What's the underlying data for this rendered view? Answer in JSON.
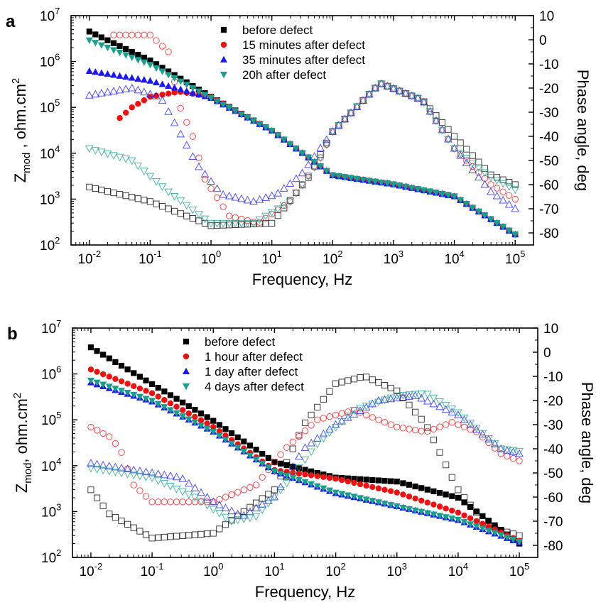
{
  "chart_data": [
    {
      "panel_label": "a",
      "type": "scatter",
      "xlabel": "Frequency, Hz",
      "ylabel_main": "Z",
      "ylabel_sub": "mod",
      "ylabel_rest": " , ohm.cm",
      "ylabel_sup": "2",
      "y2label": "Phase angle, deg",
      "xscale": "log",
      "xlim": [
        0.005,
        200000
      ],
      "yscale": "log",
      "ylim": [
        100,
        10000000
      ],
      "y2lim": [
        -85,
        10
      ],
      "x_ticks": [
        {
          "base": "10",
          "exp": "-2",
          "v": 0.01
        },
        {
          "base": "10",
          "exp": "-1",
          "v": 0.1
        },
        {
          "base": "10",
          "exp": "0",
          "v": 1
        },
        {
          "base": "10",
          "exp": "1",
          "v": 10
        },
        {
          "base": "10",
          "exp": "2",
          "v": 100
        },
        {
          "base": "10",
          "exp": "3",
          "v": 1000
        },
        {
          "base": "10",
          "exp": "4",
          "v": 10000
        },
        {
          "base": "10",
          "exp": "5",
          "v": 100000
        }
      ],
      "y_ticks": [
        {
          "base": "10",
          "exp": "2",
          "v": 100
        },
        {
          "base": "10",
          "exp": "3",
          "v": 1000
        },
        {
          "base": "10",
          "exp": "4",
          "v": 10000
        },
        {
          "base": "10",
          "exp": "5",
          "v": 100000
        },
        {
          "base": "10",
          "exp": "6",
          "v": 1000000
        },
        {
          "base": "10",
          "exp": "7",
          "v": 10000000
        }
      ],
      "y2_ticks": [
        "10",
        "0",
        "-10",
        "-20",
        "-30",
        "-40",
        "-50",
        "-60",
        "-70",
        "-80"
      ],
      "legend_position": "top-center",
      "series": [
        {
          "name": "before defect",
          "marker": "square",
          "color": "#000000",
          "mod": [
            [
              0.01,
              4500000
            ],
            [
              0.1,
              1050000
            ],
            [
              1,
              170000
            ],
            [
              10,
              31000
            ],
            [
              100,
              3300
            ],
            [
              1000,
              2100
            ],
            [
              10000,
              1150
            ],
            [
              100000,
              170
            ]
          ],
          "phase": [
            [
              0.01,
              -61
            ],
            [
              0.1,
              -67
            ],
            [
              1,
              -77
            ],
            [
              10,
              -76
            ],
            [
              40,
              -57
            ],
            [
              100,
              -38
            ],
            [
              600,
              -18
            ],
            [
              3000,
              -25
            ],
            [
              10000,
              -40
            ],
            [
              40000,
              -56
            ],
            [
              100000,
              -60
            ]
          ]
        },
        {
          "name": "15 minutes after defect",
          "marker": "circle",
          "color": "#ee1111",
          "mod": [
            [
              0.03,
              55000
            ],
            [
              0.05,
              100000
            ],
            [
              0.1,
              170000
            ],
            [
              0.3,
              220000
            ],
            [
              1,
              170000
            ],
            [
              10,
              31000
            ],
            [
              100,
              3300
            ],
            [
              1000,
              2100
            ],
            [
              10000,
              1150
            ],
            [
              100000,
              170
            ]
          ],
          "phase": [
            [
              0.025,
              2
            ],
            [
              0.1,
              2
            ],
            [
              0.2,
              -5
            ],
            [
              0.3,
              -27
            ],
            [
              0.5,
              -40
            ],
            [
              0.8,
              -58
            ],
            [
              2,
              -73
            ],
            [
              6,
              -76
            ],
            [
              20,
              -67
            ],
            [
              60,
              -50
            ],
            [
              100,
              -38
            ],
            [
              600,
              -18
            ],
            [
              3000,
              -25
            ],
            [
              10000,
              -45
            ],
            [
              40000,
              -60
            ],
            [
              100000,
              -66
            ]
          ]
        },
        {
          "name": "35 minutes after defect",
          "marker": "triangle-up",
          "color": "#1a1aee",
          "mod": [
            [
              0.01,
              620000
            ],
            [
              0.1,
              380000
            ],
            [
              1,
              160000
            ],
            [
              10,
              31000
            ],
            [
              100,
              3300
            ],
            [
              1000,
              2100
            ],
            [
              10000,
              1150
            ],
            [
              100000,
              170
            ]
          ],
          "phase": [
            [
              0.01,
              -23
            ],
            [
              0.05,
              -20
            ],
            [
              0.15,
              -24
            ],
            [
              0.3,
              -38
            ],
            [
              0.6,
              -52
            ],
            [
              1.5,
              -64
            ],
            [
              5,
              -67
            ],
            [
              12,
              -64
            ],
            [
              30,
              -56
            ],
            [
              100,
              -38
            ],
            [
              600,
              -18
            ],
            [
              3000,
              -25
            ],
            [
              10000,
              -45
            ],
            [
              40000,
              -63
            ],
            [
              100000,
              -70
            ]
          ]
        },
        {
          "name": "20h after defect",
          "marker": "triangle-down",
          "color": "#1a9e8e",
          "mod": [
            [
              0.01,
              2900000
            ],
            [
              0.1,
              850000
            ],
            [
              1,
              160000
            ],
            [
              10,
              31000
            ],
            [
              100,
              3300
            ],
            [
              1000,
              2100
            ],
            [
              10000,
              1150
            ],
            [
              100000,
              170
            ]
          ],
          "phase": [
            [
              0.01,
              -45
            ],
            [
              0.05,
              -50
            ],
            [
              0.2,
              -63
            ],
            [
              1,
              -76
            ],
            [
              5,
              -76
            ],
            [
              20,
              -67
            ],
            [
              60,
              -50
            ],
            [
              100,
              -38
            ],
            [
              600,
              -18
            ],
            [
              3000,
              -25
            ],
            [
              10000,
              -45
            ],
            [
              40000,
              -57
            ],
            [
              100000,
              -62
            ]
          ]
        }
      ]
    },
    {
      "panel_label": "b",
      "type": "scatter",
      "xlabel": "Frequency, Hz",
      "ylabel_main": "Z",
      "ylabel_sub": "mod",
      "ylabel_rest": ", ohm.cm",
      "ylabel_sup": "2",
      "y2label": "Phase angle, deg",
      "xscale": "log",
      "xlim": [
        0.005,
        200000
      ],
      "yscale": "log",
      "ylim": [
        100,
        10000000
      ],
      "y2lim": [
        -85,
        10
      ],
      "x_ticks": [
        {
          "base": "10",
          "exp": "-2",
          "v": 0.01
        },
        {
          "base": "10",
          "exp": "-1",
          "v": 0.1
        },
        {
          "base": "10",
          "exp": "0",
          "v": 1
        },
        {
          "base": "10",
          "exp": "1",
          "v": 10
        },
        {
          "base": "10",
          "exp": "2",
          "v": 100
        },
        {
          "base": "10",
          "exp": "3",
          "v": 1000
        },
        {
          "base": "10",
          "exp": "4",
          "v": 10000
        },
        {
          "base": "10",
          "exp": "5",
          "v": 100000
        }
      ],
      "y_ticks": [
        {
          "base": "10",
          "exp": "2",
          "v": 100
        },
        {
          "base": "10",
          "exp": "3",
          "v": 1000
        },
        {
          "base": "10",
          "exp": "4",
          "v": 10000
        },
        {
          "base": "10",
          "exp": "5",
          "v": 100000
        },
        {
          "base": "10",
          "exp": "6",
          "v": 1000000
        },
        {
          "base": "10",
          "exp": "7",
          "v": 10000000
        }
      ],
      "y2_ticks": [
        "10",
        "0",
        "-10",
        "-20",
        "-30",
        "-40",
        "-50",
        "-60",
        "-70",
        "-80"
      ],
      "legend_position": "top-center",
      "series": [
        {
          "name": "before defect",
          "marker": "square",
          "color": "#000000",
          "mod": [
            [
              0.01,
              3800000
            ],
            [
              0.1,
              600000
            ],
            [
              1,
              95000
            ],
            [
              10,
              12000
            ],
            [
              100,
              5500
            ],
            [
              1000,
              4500
            ],
            [
              10000,
              2000
            ],
            [
              100000,
              200
            ]
          ],
          "phase": [
            [
              0.01,
              -57
            ],
            [
              0.02,
              -67
            ],
            [
              0.1,
              -77
            ],
            [
              1,
              -75
            ],
            [
              10,
              -57
            ],
            [
              30,
              -30
            ],
            [
              100,
              -13
            ],
            [
              300,
              -10
            ],
            [
              1000,
              -16
            ],
            [
              3000,
              -30
            ],
            [
              10000,
              -57
            ],
            [
              30000,
              -72
            ],
            [
              100000,
              -76
            ]
          ]
        },
        {
          "name": "1 hour after defect",
          "marker": "circle",
          "color": "#ee1111",
          "mod": [
            [
              0.01,
              1250000
            ],
            [
              0.1,
              380000
            ],
            [
              1,
              70000
            ],
            [
              10,
              8000
            ],
            [
              100,
              5200
            ],
            [
              1000,
              2600
            ],
            [
              10000,
              950
            ],
            [
              100000,
              230
            ]
          ],
          "phase": [
            [
              0.01,
              -31
            ],
            [
              0.02,
              -35
            ],
            [
              0.03,
              -40
            ],
            [
              0.05,
              -55
            ],
            [
              0.1,
              -62
            ],
            [
              1,
              -62
            ],
            [
              5,
              -55
            ],
            [
              15,
              -40
            ],
            [
              50,
              -28
            ],
            [
              200,
              -24
            ],
            [
              1000,
              -31
            ],
            [
              3000,
              -33
            ],
            [
              8000,
              -29
            ],
            [
              20000,
              -33
            ],
            [
              50000,
              -42
            ],
            [
              100000,
              -45
            ]
          ]
        },
        {
          "name": "1 day after defect",
          "marker": "triangle-up",
          "color": "#1a1aee",
          "mod": [
            [
              0.01,
              650000
            ],
            [
              0.1,
              250000
            ],
            [
              1,
              55000
            ],
            [
              10,
              7500
            ],
            [
              100,
              2500
            ],
            [
              1000,
              1300
            ],
            [
              10000,
              650
            ],
            [
              100000,
              210
            ]
          ],
          "phase": [
            [
              0.01,
              -46
            ],
            [
              0.1,
              -50
            ],
            [
              0.3,
              -52
            ],
            [
              1,
              -62
            ],
            [
              3,
              -68
            ],
            [
              10,
              -60
            ],
            [
              30,
              -40
            ],
            [
              100,
              -30
            ],
            [
              500,
              -20
            ],
            [
              2000,
              -18
            ],
            [
              10000,
              -26
            ],
            [
              50000,
              -40
            ],
            [
              100000,
              -42
            ]
          ]
        },
        {
          "name": "4 days after defect",
          "marker": "triangle-down",
          "color": "#1a9e8e",
          "mod": [
            [
              0.01,
              720000
            ],
            [
              0.1,
              260000
            ],
            [
              1,
              55000
            ],
            [
              10,
              7500
            ],
            [
              100,
              2600
            ],
            [
              1000,
              1300
            ],
            [
              10000,
              660
            ],
            [
              100000,
              220
            ]
          ],
          "phase": [
            [
              0.01,
              -48
            ],
            [
              0.1,
              -52
            ],
            [
              0.5,
              -60
            ],
            [
              2,
              -70
            ],
            [
              5,
              -68
            ],
            [
              15,
              -55
            ],
            [
              50,
              -38
            ],
            [
              200,
              -24
            ],
            [
              1000,
              -18
            ],
            [
              3000,
              -17
            ],
            [
              10000,
              -25
            ],
            [
              50000,
              -40
            ],
            [
              100000,
              -41
            ]
          ]
        }
      ]
    }
  ]
}
